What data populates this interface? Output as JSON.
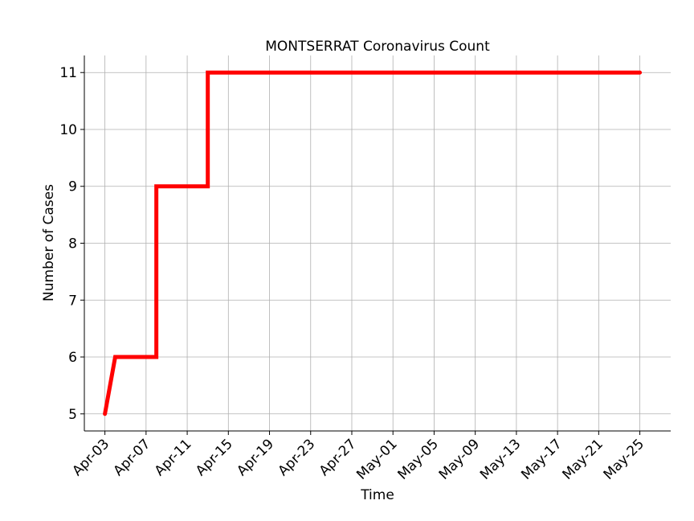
{
  "chart_data": {
    "type": "line",
    "title": "MONTSERRAT Coronavirus Count",
    "xlabel": "Time",
    "ylabel": "Number of Cases",
    "x_ticks": [
      "Apr-03",
      "Apr-07",
      "Apr-11",
      "Apr-15",
      "Apr-19",
      "Apr-23",
      "Apr-27",
      "May-01",
      "May-05",
      "May-09",
      "May-13",
      "May-17",
      "May-21",
      "May-25"
    ],
    "y_ticks": [
      5,
      6,
      7,
      8,
      9,
      10,
      11
    ],
    "xlim": [
      "2020-04-01",
      "2020-05-28"
    ],
    "ylim": [
      4.7,
      11.3
    ],
    "grid": true,
    "series": [
      {
        "color": "#ff0000",
        "points": [
          {
            "x": "2020-04-03",
            "y": 5
          },
          {
            "x": "2020-04-04",
            "y": 6
          },
          {
            "x": "2020-04-08",
            "y": 6
          },
          {
            "x": "2020-04-08",
            "y": 9
          },
          {
            "x": "2020-04-13",
            "y": 9
          },
          {
            "x": "2020-04-13",
            "y": 11
          },
          {
            "x": "2020-05-25",
            "y": 11
          }
        ]
      }
    ]
  }
}
